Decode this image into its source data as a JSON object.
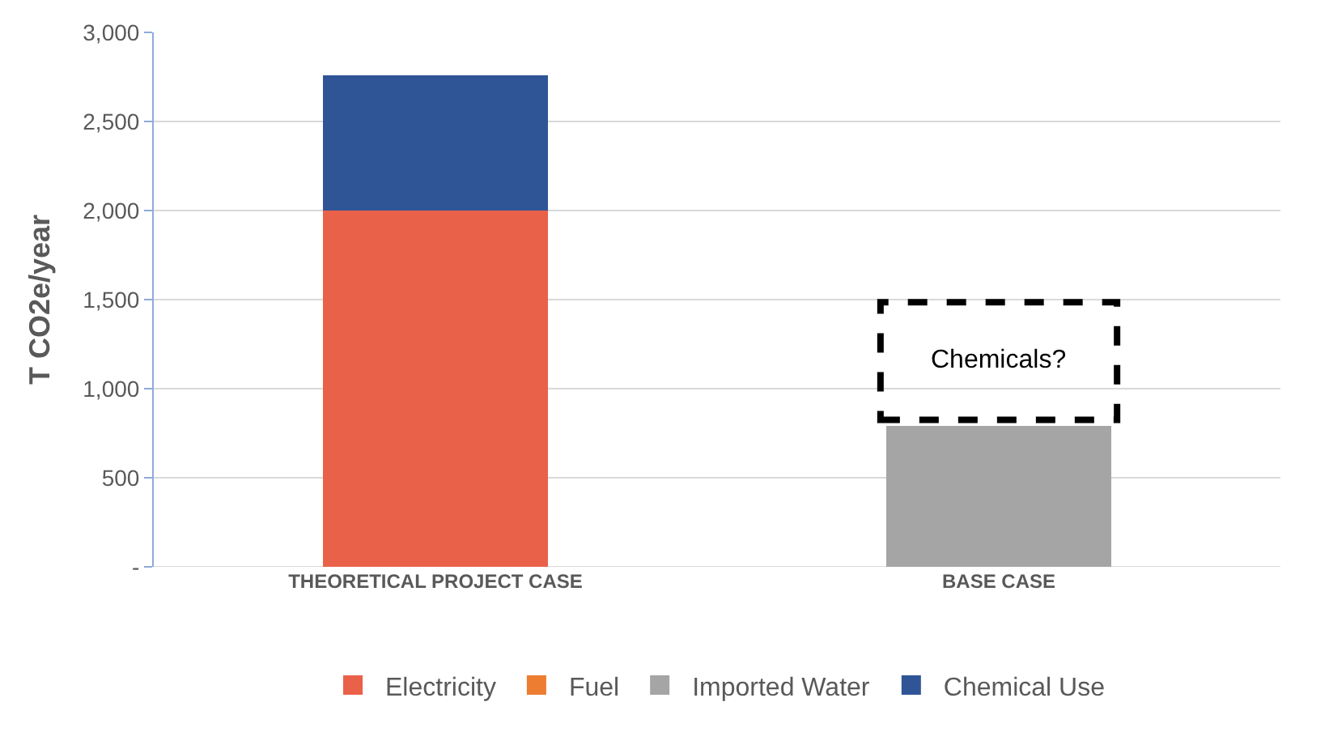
{
  "chart_data": {
    "type": "bar",
    "stacked": true,
    "ylabel": "T CO2e/year",
    "categories": [
      "THEORETICAL PROJECT CASE",
      "BASE CASE"
    ],
    "series": [
      {
        "name": "Electricity",
        "color": "#ea6149",
        "values": [
          2000,
          null
        ]
      },
      {
        "name": "Fuel",
        "color": "#ed7d31",
        "values": [
          0,
          0
        ]
      },
      {
        "name": "Imported Water",
        "color": "#a5a5a5",
        "values": [
          null,
          790
        ]
      },
      {
        "name": "Chemical Use",
        "color": "#2f5597",
        "values": [
          760,
          null
        ]
      }
    ],
    "ylim": [
      0,
      3000
    ],
    "yticks": [
      {
        "value": 0,
        "label": "-"
      },
      {
        "value": 500,
        "label": "500"
      },
      {
        "value": 1000,
        "label": "1,000"
      },
      {
        "value": 1500,
        "label": "1,500"
      },
      {
        "value": 2000,
        "label": "2,000"
      },
      {
        "value": 2500,
        "label": "2,500"
      },
      {
        "value": 3000,
        "label": "3,000"
      }
    ],
    "grid": "y",
    "legend": "bottom",
    "annotations": [
      "Chemicals?"
    ]
  }
}
